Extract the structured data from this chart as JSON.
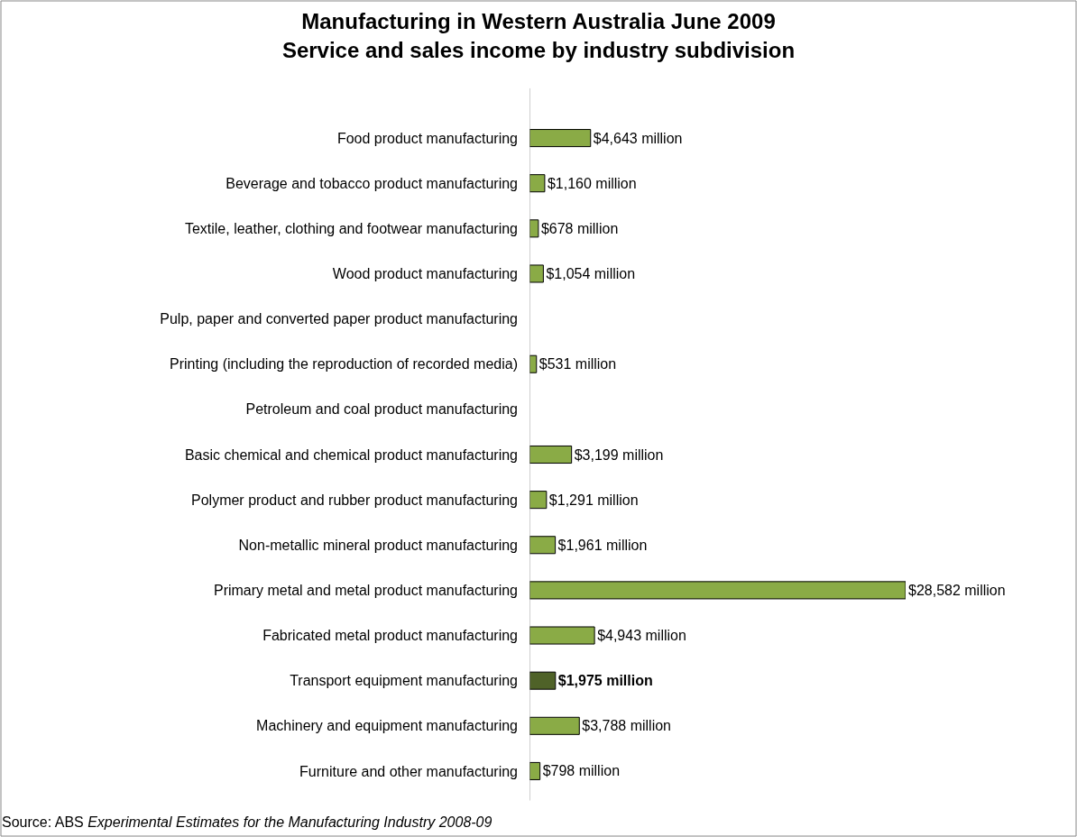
{
  "chart_data": {
    "type": "bar",
    "orientation": "horizontal",
    "title": "Manufacturing in Western Australia June 2009\nService and sales income by industry subdivision",
    "categories": [
      "Food product manufacturing",
      "Beverage and tobacco product manufacturing",
      "Textile, leather, clothing and footwear manufacturing",
      "Wood product manufacturing",
      "Pulp, paper and converted paper product manufacturing",
      "Printing (including the reproduction of recorded media)",
      "Petroleum and coal product manufacturing",
      "Basic chemical and chemical product manufacturing",
      "Polymer product and rubber product manufacturing",
      "Non-metallic mineral product manufacturing",
      "Primary metal and metal product manufacturing",
      "Fabricated metal product manufacturing",
      "Transport equipment manufacturing",
      "Machinery and equipment manufacturing",
      "Furniture and other manufacturing"
    ],
    "values": [
      4643,
      1160,
      678,
      1054,
      null,
      531,
      null,
      3199,
      1291,
      1961,
      28582,
      4943,
      1975,
      3788,
      798
    ],
    "value_labels": [
      "$4,643 million",
      "$1,160 million",
      "$678 million",
      "$1,054 million",
      null,
      "$531 million",
      null,
      "$3,199 million",
      "$1,291 million",
      "$1,961 million",
      "$28,582 million",
      "$4,943 million",
      "$1,975 million",
      "$3,788 million",
      "$798 million"
    ],
    "colors": [
      "#8aab46",
      "#8aab46",
      "#8aab46",
      "#8aab46",
      "#8aab46",
      "#8aab46",
      "#8aab46",
      "#8aab46",
      "#8aab46",
      "#8aab46",
      "#8aab46",
      "#8aab46",
      "#4f6228",
      "#8aab46",
      "#8aab46"
    ],
    "annotations": [
      "Source: ABS",
      "Experimental Estimates for the Manufacturing Industry 2008-09"
    ],
    "legend": false,
    "tick_labels": "y"
  }
}
